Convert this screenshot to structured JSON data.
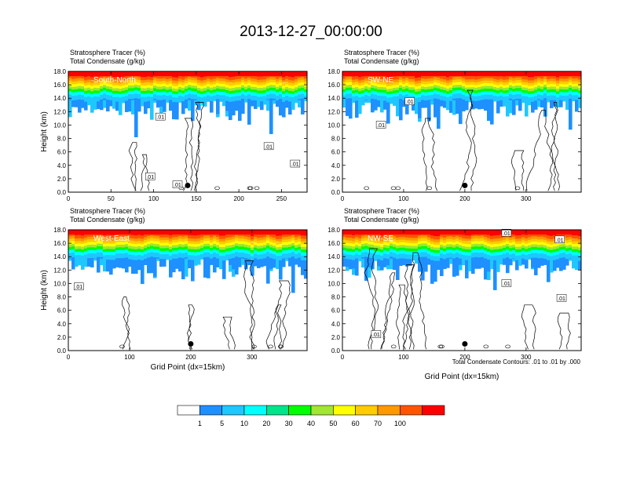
{
  "title": "2013-12-27_00:00:00",
  "colors": {
    "levels": [
      "#ffffff",
      "#1e90ff",
      "#1ec8ff",
      "#00ffff",
      "#00e58c",
      "#00ff00",
      "#a0e632",
      "#ffff00",
      "#ffcc00",
      "#ff9900",
      "#ff5500",
      "#ff0000"
    ]
  },
  "colorbar": {
    "labels": [
      "1",
      "5",
      "10",
      "20",
      "30",
      "40",
      "50",
      "60",
      "70",
      "100"
    ]
  },
  "footnote": "Total Condensate Contours: .01 to .01 by .000",
  "contour_label": ".01",
  "chart_data": [
    {
      "type": "heatmap",
      "panel_title": "South-North",
      "label_line1": "Stratosphere Tracer   (%)",
      "label_line2": "Total Condensate   (g/kg)",
      "ylabel": "Height (km)",
      "xlabel": "",
      "xlim": [
        0,
        280
      ],
      "xticks": [
        "0",
        "50",
        "100",
        "150",
        "200",
        "250"
      ],
      "xtick_values": [
        0,
        50,
        100,
        150,
        200,
        250
      ],
      "ylim": [
        0,
        18
      ],
      "yticks": [
        "0.0",
        "2.0",
        "4.0",
        "6.0",
        "8.0",
        "10.0",
        "12.0",
        "14.0",
        "16.0",
        "18.0"
      ],
      "marker_x": 140,
      "marker_y": 1.0,
      "cloud_top_km": 14.0,
      "contour_labels_at": [
        [
          128,
          1.1
        ],
        [
          108,
          11.2
        ],
        [
          96,
          2.3
        ],
        [
          235,
          6.8
        ],
        [
          266,
          4.2
        ]
      ]
    },
    {
      "type": "heatmap",
      "panel_title": "SW-NE",
      "label_line1": "Stratosphere Tracer   (%)",
      "label_line2": "Total Condensate   (g/kg)",
      "ylabel": "",
      "xlabel": "",
      "xlim": [
        0,
        390
      ],
      "xticks": [
        "0",
        "100",
        "200",
        "300"
      ],
      "xtick_values": [
        0,
        100,
        200,
        300
      ],
      "ylim": [
        0,
        18
      ],
      "yticks": [
        "0.0",
        "2.0",
        "4.0",
        "6.0",
        "8.0",
        "10.0",
        "12.0",
        "14.0",
        "16.0",
        "18.0"
      ],
      "marker_x": 200,
      "marker_y": 1.0,
      "cloud_top_km": 13.5,
      "contour_labels_at": [
        [
          110,
          13.5
        ],
        [
          63,
          10.0
        ]
      ]
    },
    {
      "type": "heatmap",
      "panel_title": "West-East",
      "label_line1": "Stratosphere Tracer   (%)",
      "label_line2": "Total Condensate   (g/kg)",
      "ylabel": "Height (km)",
      "xlabel": "Grid Point (dx=15km)",
      "xlim": [
        0,
        390
      ],
      "xticks": [
        "0",
        "100",
        "200",
        "300"
      ],
      "xtick_values": [
        0,
        100,
        200,
        300
      ],
      "ylim": [
        0,
        18
      ],
      "yticks": [
        "0.0",
        "2.0",
        "4.0",
        "6.0",
        "8.0",
        "10.0",
        "12.0",
        "14.0",
        "16.0",
        "18.0"
      ],
      "marker_x": 200,
      "marker_y": 1.0,
      "cloud_top_km": 12.0,
      "contour_labels_at": [
        [
          17,
          9.5
        ]
      ]
    },
    {
      "type": "heatmap",
      "panel_title": "NW-SE",
      "label_line1": "Stratosphere Tracer   (%)",
      "label_line2": "Total Condensate   (g/kg)",
      "ylabel": "",
      "xlabel": "Grid Point (dx=15km)",
      "xlim": [
        0,
        390
      ],
      "xticks": [
        "0",
        "100",
        "200",
        "300"
      ],
      "xtick_values": [
        0,
        100,
        200,
        300
      ],
      "ylim": [
        0,
        18
      ],
      "yticks": [
        "0.0",
        "2.0",
        "4.0",
        "6.0",
        "8.0",
        "10.0",
        "12.0",
        "14.0",
        "16.0",
        "18.0"
      ],
      "marker_x": 200,
      "marker_y": 1.0,
      "cloud_top_km": 12.5,
      "contour_labels_at": [
        [
          268,
          17.5
        ],
        [
          355,
          16.5
        ],
        [
          268,
          10.0
        ],
        [
          358,
          7.8
        ],
        [
          55,
          2.4
        ]
      ]
    }
  ]
}
